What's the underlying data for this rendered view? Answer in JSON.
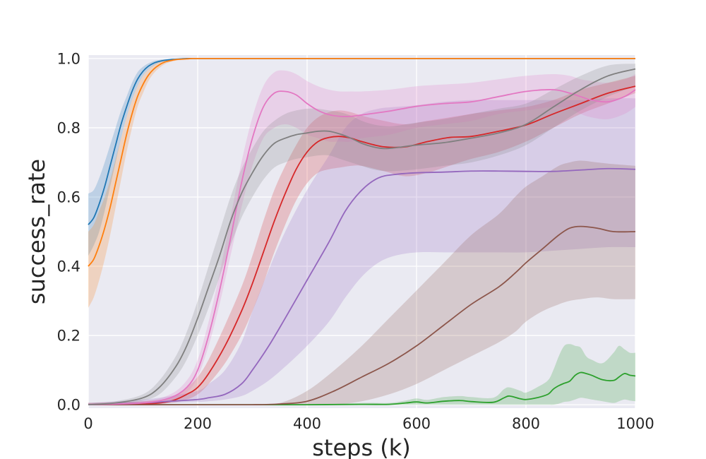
{
  "chart_data": {
    "type": "line",
    "title": "",
    "xlabel": "steps (k)",
    "ylabel": "success_rate",
    "xlim": [
      0,
      1000
    ],
    "ylim": [
      -0.01,
      1.01
    ],
    "xticks": [
      0,
      200,
      400,
      600,
      800,
      1000
    ],
    "yticks": [
      0.0,
      0.2,
      0.4,
      0.6,
      0.8,
      1.0
    ],
    "ytick_labels": [
      "0.0",
      "0.2",
      "0.4",
      "0.6",
      "0.8",
      "1.0"
    ],
    "grid": true,
    "background": "#eaeaf2",
    "band_opacity": 0.22,
    "series": [
      {
        "color": "#1f77b4",
        "x": [
          0,
          10,
          20,
          30,
          40,
          50,
          60,
          70,
          80,
          90,
          100,
          110,
          120,
          130,
          140,
          150,
          160,
          170,
          180,
          190,
          200,
          220,
          250,
          300,
          400,
          500,
          600,
          700,
          800,
          900,
          1000
        ],
        "y": [
          0.52,
          0.54,
          0.58,
          0.63,
          0.69,
          0.75,
          0.81,
          0.86,
          0.905,
          0.94,
          0.963,
          0.978,
          0.987,
          0.992,
          0.995,
          0.997,
          0.998,
          0.999,
          1.0,
          1.0,
          1.0,
          1.0,
          1.0,
          1.0,
          1.0,
          1.0,
          1.0,
          1.0,
          1.0,
          1.0,
          1.0
        ],
        "lower": [
          0.43,
          0.46,
          0.5,
          0.56,
          0.63,
          0.7,
          0.77,
          0.83,
          0.88,
          0.92,
          0.95,
          0.968,
          0.98,
          0.988,
          0.993,
          0.996,
          0.998,
          0.999,
          1.0,
          1.0,
          1.0,
          1.0,
          1.0,
          1.0,
          1.0,
          1.0,
          1.0,
          1.0,
          1.0,
          1.0,
          1.0
        ],
        "upper": [
          0.61,
          0.62,
          0.655,
          0.7,
          0.75,
          0.8,
          0.85,
          0.89,
          0.93,
          0.96,
          0.976,
          0.986,
          0.993,
          0.996,
          0.998,
          0.999,
          1.0,
          1.0,
          1.0,
          1.0,
          1.0,
          1.0,
          1.0,
          1.0,
          1.0,
          1.0,
          1.0,
          1.0,
          1.0,
          1.0,
          1.0
        ]
      },
      {
        "color": "#ff7f0e",
        "x": [
          0,
          10,
          20,
          30,
          40,
          50,
          60,
          70,
          80,
          90,
          100,
          110,
          120,
          130,
          140,
          150,
          160,
          170,
          180,
          190,
          200,
          220,
          250,
          300,
          400,
          500,
          600,
          700,
          800,
          900,
          1000
        ],
        "y": [
          0.4,
          0.42,
          0.46,
          0.51,
          0.57,
          0.64,
          0.71,
          0.78,
          0.84,
          0.89,
          0.925,
          0.952,
          0.97,
          0.982,
          0.99,
          0.994,
          0.997,
          0.998,
          0.999,
          1.0,
          1.0,
          1.0,
          1.0,
          1.0,
          1.0,
          1.0,
          1.0,
          1.0,
          1.0,
          1.0,
          1.0
        ],
        "lower": [
          0.28,
          0.31,
          0.36,
          0.42,
          0.49,
          0.57,
          0.65,
          0.73,
          0.8,
          0.86,
          0.9,
          0.935,
          0.958,
          0.973,
          0.984,
          0.99,
          0.994,
          0.997,
          0.998,
          0.999,
          1.0,
          1.0,
          1.0,
          1.0,
          1.0,
          1.0,
          1.0,
          1.0,
          1.0,
          1.0,
          1.0
        ],
        "upper": [
          0.5,
          0.52,
          0.56,
          0.6,
          0.65,
          0.71,
          0.77,
          0.83,
          0.88,
          0.92,
          0.95,
          0.968,
          0.982,
          0.99,
          0.995,
          0.997,
          0.999,
          1.0,
          1.0,
          1.0,
          1.0,
          1.0,
          1.0,
          1.0,
          1.0,
          1.0,
          1.0,
          1.0,
          1.0,
          1.0,
          1.0
        ]
      },
      {
        "color": "#2ca02c",
        "x": [
          0,
          100,
          200,
          300,
          400,
          500,
          550,
          580,
          600,
          620,
          650,
          680,
          700,
          740,
          760,
          770,
          790,
          800,
          820,
          840,
          850,
          860,
          870,
          880,
          890,
          900,
          910,
          920,
          940,
          960,
          970,
          980,
          990,
          1000
        ],
        "y": [
          0.0,
          0.0,
          0.0,
          0.0,
          0.0,
          0.001,
          0.001,
          0.005,
          0.008,
          0.005,
          0.01,
          0.012,
          0.009,
          0.007,
          0.02,
          0.025,
          0.017,
          0.015,
          0.02,
          0.03,
          0.045,
          0.055,
          0.062,
          0.068,
          0.085,
          0.093,
          0.09,
          0.085,
          0.072,
          0.07,
          0.08,
          0.09,
          0.085,
          0.083
        ],
        "lower": [
          0.0,
          0.0,
          0.0,
          0.0,
          0.0,
          0.0,
          0.0,
          0.0,
          0.0,
          0.0,
          0.0,
          0.0,
          0.0,
          0.0,
          0.0,
          0.0,
          0.0,
          0.0,
          0.0,
          0.0,
          0.0,
          0.003,
          0.008,
          0.01,
          0.015,
          0.02,
          0.018,
          0.015,
          0.01,
          0.005,
          0.01,
          0.015,
          0.012,
          0.01
        ],
        "upper": [
          0.0,
          0.0,
          0.0,
          0.0,
          0.0,
          0.005,
          0.005,
          0.012,
          0.018,
          0.014,
          0.022,
          0.025,
          0.022,
          0.02,
          0.045,
          0.05,
          0.04,
          0.035,
          0.05,
          0.07,
          0.1,
          0.14,
          0.17,
          0.175,
          0.17,
          0.165,
          0.14,
          0.13,
          0.12,
          0.15,
          0.17,
          0.16,
          0.15,
          0.15
        ]
      },
      {
        "color": "#d62728",
        "x": [
          0,
          100,
          150,
          180,
          200,
          220,
          250,
          280,
          300,
          320,
          340,
          360,
          380,
          400,
          420,
          440,
          460,
          480,
          500,
          540,
          580,
          620,
          660,
          700,
          750,
          800,
          850,
          900,
          950,
          1000
        ],
        "y": [
          0.0,
          0.002,
          0.01,
          0.03,
          0.05,
          0.09,
          0.17,
          0.27,
          0.35,
          0.44,
          0.53,
          0.61,
          0.68,
          0.73,
          0.76,
          0.772,
          0.775,
          0.77,
          0.76,
          0.745,
          0.745,
          0.76,
          0.772,
          0.775,
          0.79,
          0.808,
          0.84,
          0.87,
          0.9,
          0.92
        ],
        "lower": [
          0.0,
          0.0,
          0.005,
          0.015,
          0.03,
          0.06,
          0.12,
          0.2,
          0.27,
          0.35,
          0.44,
          0.52,
          0.59,
          0.64,
          0.67,
          0.68,
          0.685,
          0.69,
          0.69,
          0.675,
          0.66,
          0.67,
          0.69,
          0.71,
          0.73,
          0.76,
          0.8,
          0.84,
          0.87,
          0.9
        ],
        "upper": [
          0.005,
          0.01,
          0.02,
          0.05,
          0.08,
          0.13,
          0.23,
          0.34,
          0.43,
          0.53,
          0.62,
          0.69,
          0.75,
          0.8,
          0.83,
          0.845,
          0.85,
          0.845,
          0.835,
          0.82,
          0.81,
          0.82,
          0.83,
          0.84,
          0.85,
          0.86,
          0.88,
          0.91,
          0.93,
          0.95
        ]
      },
      {
        "color": "#9467bd",
        "x": [
          0,
          100,
          150,
          200,
          220,
          250,
          280,
          300,
          330,
          360,
          400,
          440,
          470,
          500,
          530,
          560,
          600,
          650,
          700,
          750,
          800,
          850,
          900,
          950,
          1000
        ],
        "y": [
          0.0,
          0.005,
          0.01,
          0.015,
          0.02,
          0.03,
          0.06,
          0.1,
          0.17,
          0.25,
          0.36,
          0.47,
          0.56,
          0.62,
          0.655,
          0.665,
          0.67,
          0.672,
          0.675,
          0.675,
          0.674,
          0.674,
          0.678,
          0.682,
          0.68
        ],
        "lower": [
          0.0,
          0.0,
          0.005,
          0.008,
          0.01,
          0.015,
          0.025,
          0.04,
          0.07,
          0.11,
          0.17,
          0.24,
          0.31,
          0.37,
          0.41,
          0.43,
          0.44,
          0.44,
          0.44,
          0.44,
          0.44,
          0.445,
          0.45,
          0.455,
          0.455
        ],
        "upper": [
          0.005,
          0.015,
          0.025,
          0.04,
          0.06,
          0.1,
          0.18,
          0.27,
          0.39,
          0.5,
          0.62,
          0.72,
          0.8,
          0.84,
          0.855,
          0.86,
          0.865,
          0.875,
          0.88,
          0.88,
          0.88,
          0.88,
          0.88,
          0.885,
          0.885
        ]
      },
      {
        "color": "#8c564b",
        "x": [
          0,
          100,
          200,
          300,
          350,
          400,
          450,
          500,
          550,
          600,
          650,
          700,
          750,
          780,
          800,
          830,
          860,
          880,
          900,
          930,
          960,
          1000
        ],
        "y": [
          0.0,
          0.0,
          0.0,
          0.0,
          0.002,
          0.01,
          0.04,
          0.08,
          0.12,
          0.17,
          0.23,
          0.29,
          0.34,
          0.38,
          0.41,
          0.45,
          0.49,
          0.51,
          0.515,
          0.51,
          0.5,
          0.5
        ],
        "lower": [
          0.0,
          0.0,
          0.0,
          0.0,
          0.0,
          0.0,
          0.0,
          0.01,
          0.03,
          0.06,
          0.1,
          0.14,
          0.18,
          0.21,
          0.24,
          0.27,
          0.29,
          0.3,
          0.305,
          0.31,
          0.305,
          0.305
        ],
        "upper": [
          0.0,
          0.0,
          0.0,
          0.0,
          0.005,
          0.04,
          0.1,
          0.17,
          0.25,
          0.33,
          0.41,
          0.49,
          0.55,
          0.6,
          0.63,
          0.66,
          0.69,
          0.7,
          0.705,
          0.7,
          0.695,
          0.69
        ]
      },
      {
        "color": "#e377c2",
        "x": [
          0,
          100,
          150,
          180,
          200,
          220,
          240,
          260,
          280,
          300,
          320,
          340,
          360,
          380,
          400,
          420,
          440,
          460,
          480,
          500,
          550,
          600,
          650,
          700,
          750,
          800,
          850,
          880,
          900,
          920,
          950,
          980,
          1000
        ],
        "y": [
          0.0,
          0.005,
          0.02,
          0.05,
          0.1,
          0.2,
          0.33,
          0.48,
          0.64,
          0.77,
          0.86,
          0.9,
          0.905,
          0.895,
          0.87,
          0.85,
          0.838,
          0.833,
          0.833,
          0.837,
          0.848,
          0.862,
          0.87,
          0.875,
          0.89,
          0.905,
          0.91,
          0.9,
          0.89,
          0.88,
          0.875,
          0.89,
          0.91
        ],
        "lower": [
          0.0,
          0.002,
          0.01,
          0.035,
          0.08,
          0.17,
          0.29,
          0.43,
          0.57,
          0.69,
          0.77,
          0.8,
          0.81,
          0.8,
          0.78,
          0.77,
          0.76,
          0.76,
          0.76,
          0.77,
          0.78,
          0.8,
          0.81,
          0.82,
          0.84,
          0.85,
          0.86,
          0.855,
          0.84,
          0.83,
          0.825,
          0.84,
          0.86
        ],
        "upper": [
          0.005,
          0.01,
          0.03,
          0.07,
          0.13,
          0.24,
          0.38,
          0.54,
          0.7,
          0.83,
          0.92,
          0.96,
          0.965,
          0.955,
          0.935,
          0.92,
          0.91,
          0.905,
          0.905,
          0.905,
          0.91,
          0.92,
          0.925,
          0.93,
          0.94,
          0.95,
          0.955,
          0.95,
          0.94,
          0.935,
          0.93,
          0.94,
          0.955
        ]
      },
      {
        "color": "#7f7f7f",
        "x": [
          0,
          50,
          100,
          130,
          160,
          180,
          200,
          220,
          240,
          260,
          280,
          300,
          320,
          340,
          360,
          380,
          400,
          420,
          440,
          460,
          480,
          500,
          520,
          540,
          560,
          600,
          650,
          700,
          750,
          800,
          850,
          900,
          950,
          1000
        ],
        "y": [
          0.0,
          0.005,
          0.02,
          0.05,
          0.11,
          0.17,
          0.25,
          0.34,
          0.43,
          0.53,
          0.61,
          0.67,
          0.72,
          0.755,
          0.77,
          0.78,
          0.785,
          0.79,
          0.79,
          0.782,
          0.77,
          0.755,
          0.745,
          0.74,
          0.742,
          0.75,
          0.757,
          0.77,
          0.785,
          0.81,
          0.86,
          0.91,
          0.95,
          0.97
        ],
        "lower": [
          0.0,
          0.002,
          0.012,
          0.03,
          0.08,
          0.13,
          0.2,
          0.28,
          0.37,
          0.46,
          0.54,
          0.6,
          0.65,
          0.685,
          0.7,
          0.71,
          0.715,
          0.72,
          0.72,
          0.71,
          0.7,
          0.69,
          0.68,
          0.675,
          0.675,
          0.68,
          0.69,
          0.7,
          0.72,
          0.75,
          0.8,
          0.85,
          0.89,
          0.92
        ],
        "upper": [
          0.005,
          0.01,
          0.03,
          0.07,
          0.14,
          0.21,
          0.3,
          0.4,
          0.5,
          0.6,
          0.68,
          0.74,
          0.79,
          0.82,
          0.84,
          0.85,
          0.855,
          0.855,
          0.85,
          0.845,
          0.835,
          0.82,
          0.81,
          0.805,
          0.805,
          0.815,
          0.825,
          0.84,
          0.855,
          0.87,
          0.91,
          0.95,
          0.98,
          0.985
        ]
      }
    ]
  }
}
